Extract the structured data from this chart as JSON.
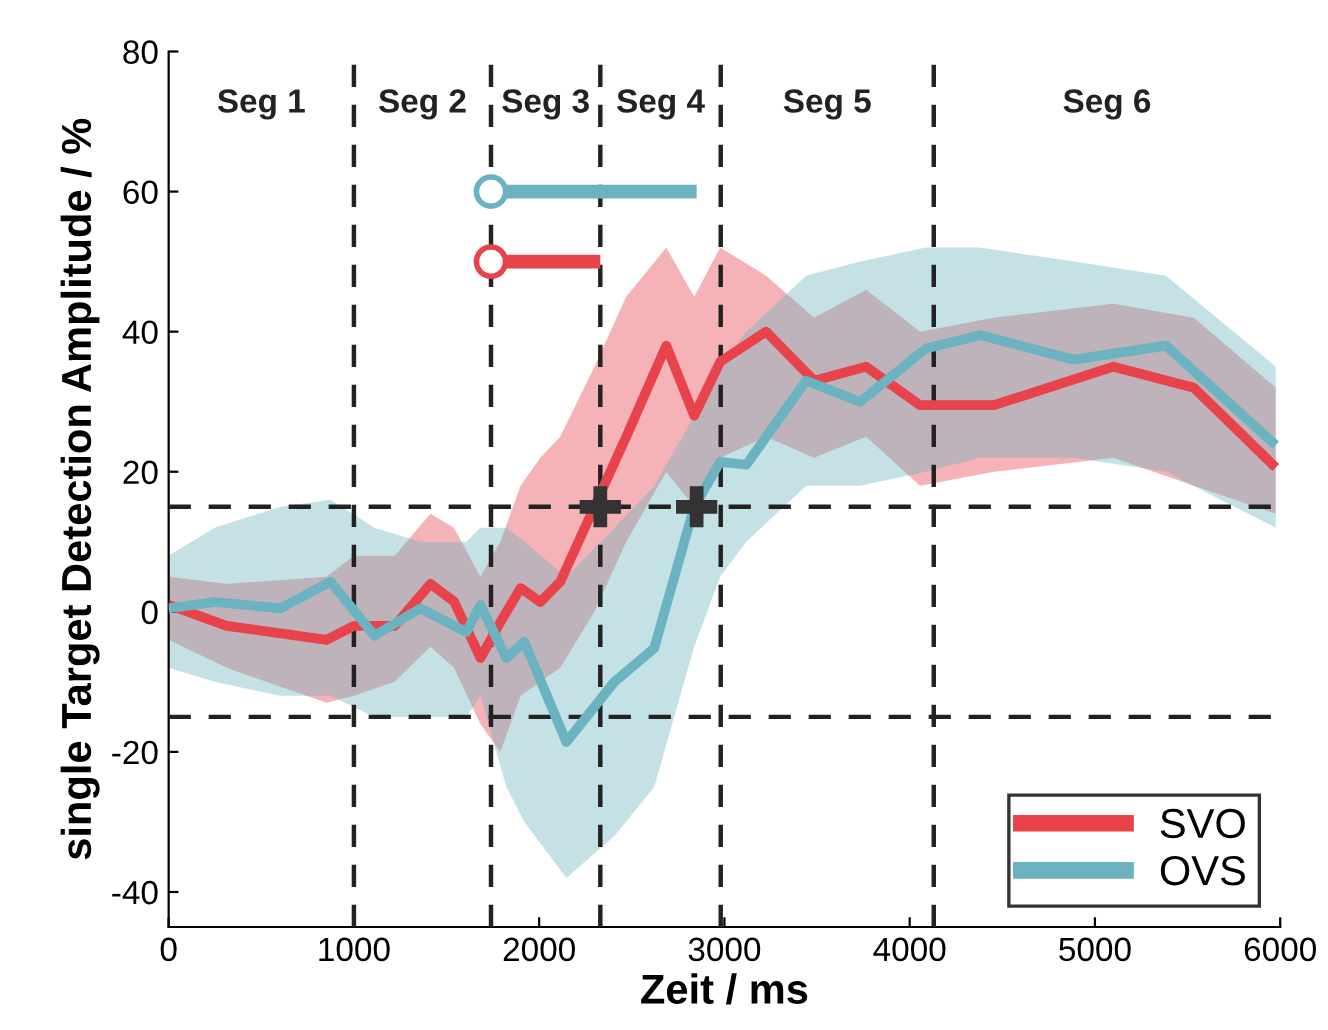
{
  "chart_data": {
    "type": "line",
    "xlabel": "Zeit / ms",
    "ylabel": "single Target Detection Amplitude / %",
    "xlim": [
      0,
      6000
    ],
    "ylim": [
      -45,
      80
    ],
    "xticks": [
      0,
      1000,
      2000,
      3000,
      4000,
      5000,
      6000
    ],
    "yticks": [
      -40,
      -20,
      0,
      20,
      40,
      60,
      80
    ],
    "grid": false,
    "legend": "bottom right",
    "line_style": "solid",
    "series": [
      {
        "name": "SVO",
        "color": "#e8424a",
        "x": [
          0,
          313,
          852,
          1000,
          1220,
          1413,
          1540,
          1683,
          1790,
          1900,
          2006,
          2114,
          2298,
          2470,
          2686,
          2837,
          2977,
          3225,
          3484,
          3765,
          4056,
          4455,
          5100,
          5534,
          5976
        ],
        "values": [
          1,
          -2,
          -4,
          -2,
          -2,
          4,
          1.5,
          -6.6,
          -1.5,
          3.4,
          1.4,
          4.3,
          15,
          25,
          38,
          28,
          35.7,
          40,
          33,
          35,
          29.5,
          29.5,
          35,
          32,
          20.6
        ],
        "lower": [
          -4,
          -8,
          -13,
          -12,
          -10,
          -5,
          -8,
          -16,
          -20,
          -12,
          -10,
          -8,
          0,
          10,
          20,
          15,
          22,
          25,
          22,
          25,
          18,
          20,
          22,
          18,
          14
        ],
        "upper": [
          5,
          4,
          5,
          8,
          8,
          14,
          12,
          5,
          10,
          18,
          22,
          25,
          35,
          45,
          52,
          45,
          52,
          48,
          42,
          46,
          40,
          42,
          44,
          42,
          32
        ]
      },
      {
        "name": "OVS",
        "color": "#6bb3c0",
        "x": [
          0,
          248,
          604,
          874,
          1111,
          1359,
          1607,
          1683,
          1823,
          1920,
          2147,
          2406,
          2621,
          2837,
          2977,
          3118,
          3441,
          3732,
          4088,
          4380,
          4887,
          5383,
          5976
        ],
        "values": [
          0.5,
          1.4,
          0.5,
          4.3,
          -3.4,
          0.5,
          -2.9,
          1,
          -6.6,
          -4.3,
          -18.6,
          -10,
          -5.2,
          15,
          21.4,
          21,
          33,
          30,
          37.6,
          39.5,
          36,
          38,
          23.8
        ],
        "lower": [
          -8,
          -10,
          -12,
          -12,
          -15,
          -15,
          -15,
          -12,
          -25,
          -30,
          -38,
          -32,
          -25,
          -5,
          5,
          10,
          18,
          18,
          20,
          22,
          22,
          20,
          12
        ],
        "upper": [
          8,
          12,
          15,
          16,
          12,
          10,
          10,
          12,
          12,
          10,
          5,
          12,
          18,
          28,
          35,
          40,
          48,
          50,
          52,
          52,
          50,
          48,
          35
        ]
      },
      {
        "type": "line",
        "color": "#6bb3c0",
        "x": [
          1740,
          2850
        ],
        "values": [
          60,
          60
        ]
      },
      {
        "type": "line",
        "color": "#e8424a",
        "x": [
          1740,
          2330
        ],
        "values": [
          50,
          50
        ]
      },
      {
        "type": "scatter",
        "color": "#6bb3c0",
        "marker": "circle",
        "x": [
          1740
        ],
        "values": [
          60
        ]
      },
      {
        "type": "scatter",
        "color": "#e8424a",
        "marker": "circle",
        "x": [
          1740
        ],
        "values": [
          50
        ]
      },
      {
        "type": "scatter",
        "color": "#333333",
        "marker": "cross",
        "x": [
          2330,
          2850
        ],
        "values": [
          15,
          15
        ]
      }
    ],
    "ref_lines": [
      {
        "axis": "x",
        "value": 1000,
        "line_style": "dashed",
        "color": "#222222"
      },
      {
        "axis": "x",
        "value": 1740,
        "line_style": "dashed",
        "color": "#222222"
      },
      {
        "axis": "x",
        "value": 2330,
        "line_style": "dashed",
        "color": "#222222"
      },
      {
        "axis": "x",
        "value": 2980,
        "line_style": "dashed",
        "color": "#222222"
      },
      {
        "axis": "x",
        "value": 4130,
        "line_style": "dashed",
        "color": "#222222"
      },
      {
        "axis": "y",
        "value": 15,
        "line_style": "dashed",
        "color": "#222222"
      },
      {
        "axis": "y",
        "value": -15,
        "line_style": "dashed",
        "color": "#222222"
      }
    ],
    "annotations": [
      "Seg 1",
      "Seg 2",
      "Seg 3",
      "Seg 4",
      "Seg 5",
      "Seg 6"
    ]
  }
}
